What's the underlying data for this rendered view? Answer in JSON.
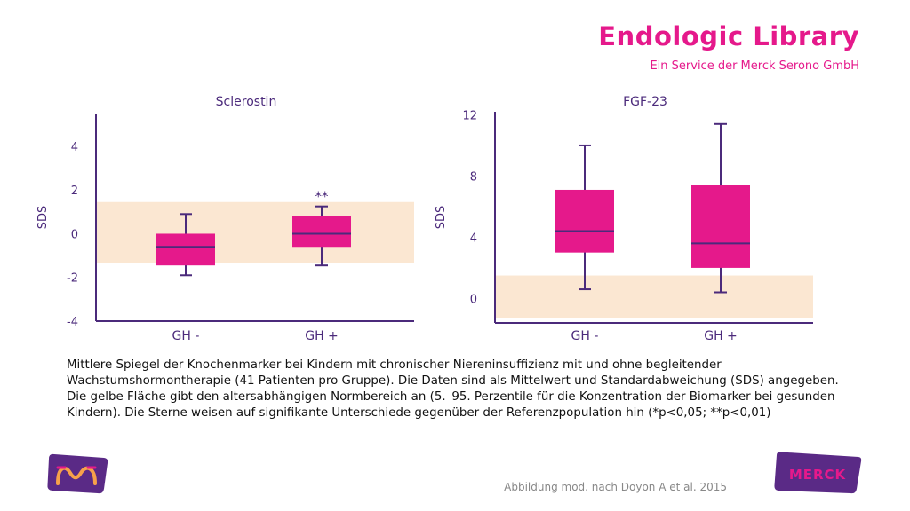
{
  "header": {
    "brand": "Endologic Library",
    "subtitle": "Ein Service der Merck Serono GmbH"
  },
  "chart_data": [
    {
      "type": "boxplot",
      "title": "Sclerostin",
      "ylabel": "SDS",
      "ylim": [
        -4,
        5.5
      ],
      "yticks": [
        4,
        2,
        0,
        -2,
        -4
      ],
      "reference_band": [
        -1.35,
        1.45
      ],
      "categories": [
        "GH -",
        "GH +"
      ],
      "boxes": [
        {
          "category": "GH -",
          "whisker_low": -1.9,
          "q1": -1.45,
          "median": -0.6,
          "q3": 0.0,
          "whisker_high": 0.9
        },
        {
          "category": "GH +",
          "whisker_low": -1.45,
          "q1": -0.6,
          "median": 0.0,
          "q3": 0.8,
          "whisker_high": 1.25,
          "annotation": "**"
        }
      ],
      "grid": false
    },
    {
      "type": "boxplot",
      "title": "FGF-23",
      "ylabel": "SDS",
      "ylim": [
        -1.6,
        12.2
      ],
      "yticks": [
        12,
        8,
        4,
        0
      ],
      "reference_band": [
        -1.3,
        1.5
      ],
      "categories": [
        "GH -",
        "GH +"
      ],
      "boxes": [
        {
          "category": "GH -",
          "whisker_low": 0.6,
          "q1": 3.0,
          "median": 4.4,
          "q3": 7.1,
          "whisker_high": 10.0
        },
        {
          "category": "GH +",
          "whisker_low": 0.4,
          "q1": 2.0,
          "median": 3.6,
          "q3": 7.4,
          "whisker_high": 11.4
        }
      ],
      "grid": false
    }
  ],
  "caption": "Mittlere Spiegel der Knochenmarker bei Kindern mit chronischer Niereninsuffizienz mit und ohne begleitender Wachstumshormontherapie (41 Patienten pro Gruppe). Die Daten sind als Mittelwert und Standardabweichung (SDS) angegeben. Die gelbe Fläche gibt den altersabhängigen Normbereich an (5.–95. Perzentile für die Konzentration der Biomarker bei gesunden Kindern). Die Sterne weisen auf signifikante Unterschiede gegenüber der Referenzpopulation hin (*p<0,05; **p<0,01)",
  "source": "Abbildung mod. nach Doyon A  et al. 2015",
  "logos": {
    "right_text": "MERCK"
  },
  "colors": {
    "brand": "#e5198b",
    "box_fill": "#e5198b",
    "axis": "#4b2a7b",
    "band": "#fbe7d2",
    "logo_bg": "#5a2a86"
  }
}
